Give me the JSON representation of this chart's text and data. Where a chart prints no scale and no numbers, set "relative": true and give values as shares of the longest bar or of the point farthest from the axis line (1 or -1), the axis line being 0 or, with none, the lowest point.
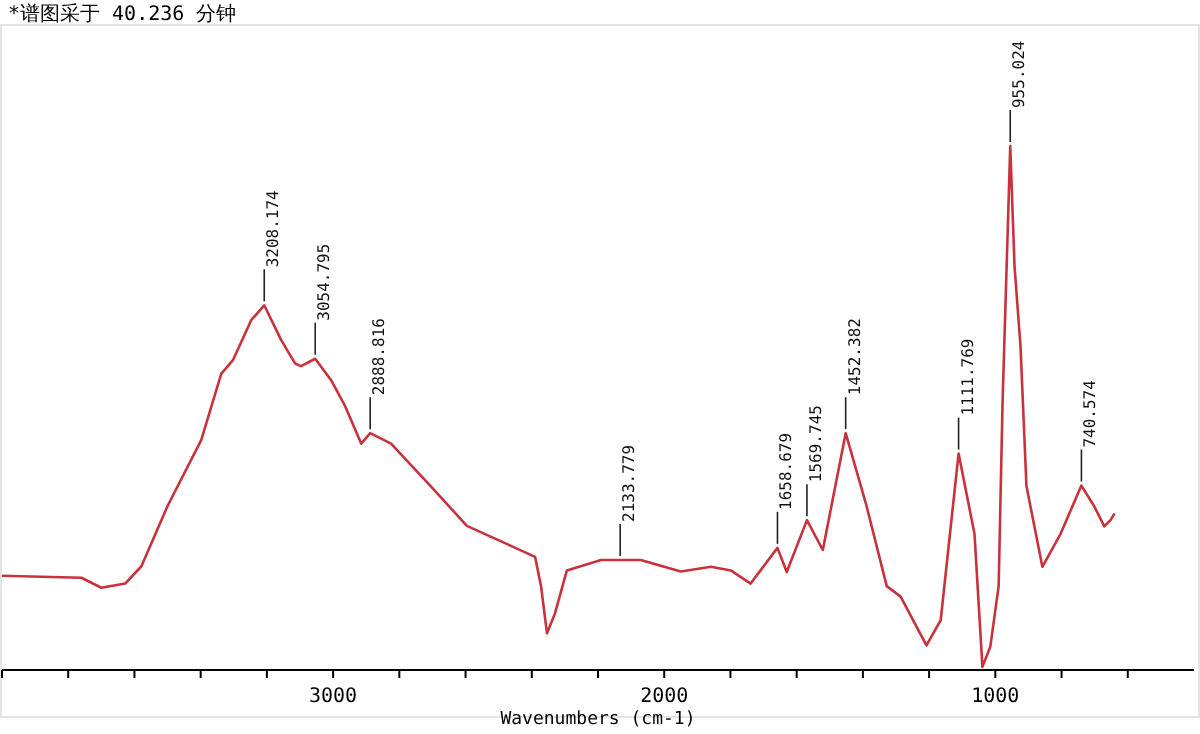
{
  "chart_data": {
    "type": "line",
    "relative": true,
    "color": "#c8323c",
    "xlabel": "Wavenumbers (cm-1)",
    "xlim": [
      4000,
      400
    ],
    "xticks": [
      {
        "value": 4000,
        "label": null
      },
      {
        "value": 3800,
        "label": null
      },
      {
        "value": 3600,
        "label": null
      },
      {
        "value": 3400,
        "label": null
      },
      {
        "value": 3200,
        "label": null
      },
      3000,
      {
        "value": 2800,
        "label": null
      },
      {
        "value": 2600,
        "label": null
      },
      {
        "value": 2400,
        "label": null
      },
      {
        "value": 2200,
        "label": null
      },
      2000,
      {
        "value": 1800,
        "label": null
      },
      {
        "value": 1600,
        "label": null
      },
      {
        "value": 1400,
        "label": null
      },
      {
        "value": 1200,
        "label": null
      },
      1000,
      {
        "value": 800,
        "label": null
      },
      {
        "value": 600,
        "label": null
      }
    ],
    "x": [
      4000,
      3760,
      3700,
      3628,
      3579,
      3500,
      3398,
      3338,
      3302,
      3247,
      3208,
      3157,
      3115,
      3097,
      3054,
      3006,
      2964,
      2915,
      2888,
      2825,
      2704,
      2596,
      2463,
      2390,
      2372,
      2354,
      2330,
      2294,
      2191,
      2133,
      2071,
      1950,
      1859,
      1799,
      1739,
      1658,
      1630,
      1569,
      1521,
      1452,
      1389,
      1328,
      1286,
      1208,
      1165,
      1111,
      1063,
      1039,
      1015,
      990,
      978,
      955,
      942,
      924,
      906,
      858,
      803,
      740,
      701,
      671,
      652,
      640
    ],
    "values": [
      0.18,
      0.176,
      0.157,
      0.165,
      0.198,
      0.313,
      0.439,
      0.565,
      0.592,
      0.668,
      0.696,
      0.63,
      0.585,
      0.58,
      0.594,
      0.553,
      0.504,
      0.432,
      0.452,
      0.432,
      0.35,
      0.275,
      0.237,
      0.216,
      0.16,
      0.07,
      0.108,
      0.19,
      0.21,
      0.21,
      0.21,
      0.188,
      0.197,
      0.19,
      0.165,
      0.233,
      0.187,
      0.286,
      0.229,
      0.452,
      0.313,
      0.16,
      0.14,
      0.047,
      0.095,
      0.413,
      0.26,
      0.006,
      0.045,
      0.16,
      0.515,
      1,
      0.77,
      0.618,
      0.351,
      0.197,
      0.26,
      0.352,
      0.312,
      0.274,
      0.286,
      0.299
    ],
    "annotations": [
      "*谱图采于 40.236 分钟",
      {
        "text": "3208.174",
        "x": 3208,
        "y": 0.696
      },
      {
        "text": "3054.795",
        "x": 3054,
        "y": 0.594
      },
      {
        "text": "2888.816",
        "x": 2888,
        "y": 0.452
      },
      {
        "text": "2133.779",
        "x": 2133,
        "y": 0.21
      },
      {
        "text": "1658.679",
        "x": 1658,
        "y": 0.233
      },
      {
        "text": "1569.745",
        "x": 1569,
        "y": 0.286
      },
      {
        "text": "1452.382",
        "x": 1452,
        "y": 0.452
      },
      {
        "text": "1111.769",
        "x": 1111,
        "y": 0.413
      },
      {
        "text": "955.024",
        "x": 955,
        "y": 1
      },
      {
        "text": "740.574",
        "x": 740,
        "y": 0.352
      }
    ]
  }
}
